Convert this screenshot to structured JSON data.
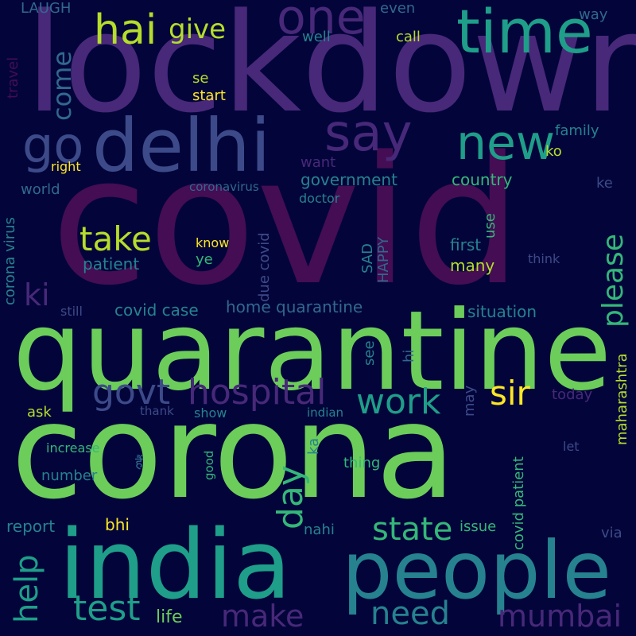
{
  "palette": {
    "background": "#03053a",
    "dark_purple": "#440d54",
    "purple": "#482879",
    "indigo": "#3d4a89",
    "blue": "#31688e",
    "teal": "#26828e",
    "green_teal": "#1f9e89",
    "green": "#35b779",
    "light_green": "#6ccd5a",
    "yellow_green": "#b5dd2b",
    "yellow": "#fde725"
  },
  "words": [
    "lockdown",
    "covid",
    "quarantine",
    "corona",
    "india",
    "people",
    "delhi",
    "time",
    "new",
    "one",
    "say",
    "go",
    "hai",
    "give",
    "take",
    "please",
    "hospital",
    "govt",
    "work",
    "sir",
    "day",
    "state",
    "help",
    "test",
    "make",
    "need",
    "mumbai",
    "life",
    "come",
    "ki",
    "LAUGH",
    "even",
    "way",
    "well",
    "call",
    "travel",
    "se",
    "start",
    "family",
    "ko",
    "right",
    "want",
    "government",
    "country",
    "ke",
    "coronavirus",
    "world",
    "doctor",
    "use",
    "corona virus",
    "know",
    "first",
    "SAD",
    "HAPPY",
    "patient",
    "ye",
    "due covid",
    "think",
    "many",
    "still",
    "covid case",
    "home quarantine",
    "situation",
    "see",
    "hi",
    "maharashtra",
    "may",
    "today",
    "ask",
    "thank",
    "show",
    "indian",
    "covid patient",
    "increase",
    "ka",
    "good",
    "thing",
    "let",
    "number",
    "report",
    "bhi",
    "nahi",
    "issue",
    "via",
    "हैं"
  ]
}
